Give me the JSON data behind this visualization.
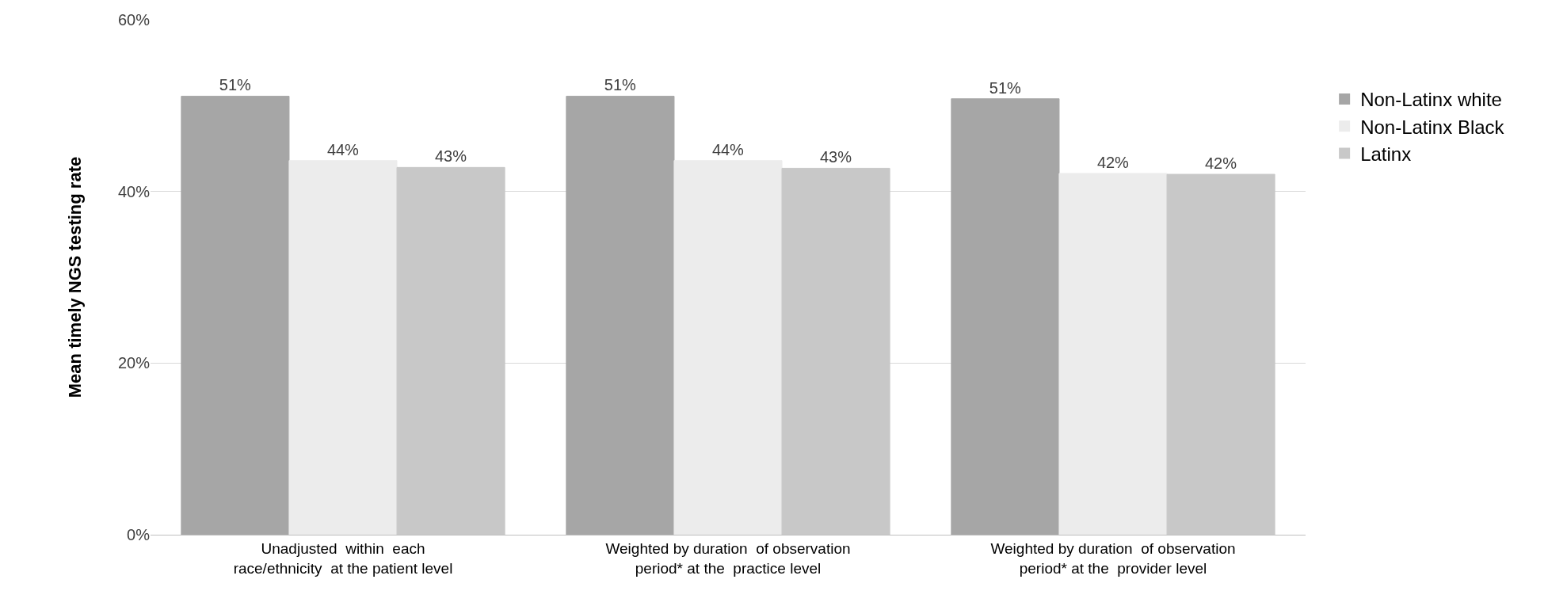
{
  "chart_data": {
    "type": "bar",
    "ylabel": "Mean timely NGS testing rate",
    "categories": [
      "Unadjusted  within  each\nrace/ethnicity  at the patient level",
      "Weighted by duration  of observation\nperiod* at the  practice level",
      "Weighted by duration  of observation\nperiod* at the  provider level"
    ],
    "series": [
      {
        "name": "Non-Latinx white",
        "color": "#a6a6a6",
        "values": [
          51.1,
          51.1,
          50.8
        ],
        "value_labels": [
          "51%",
          "51%",
          "51%"
        ]
      },
      {
        "name": "Non-Latinx Black",
        "color": "#ececec",
        "values": [
          43.6,
          43.6,
          42.1
        ],
        "value_labels": [
          "44%",
          "44%",
          "42%"
        ]
      },
      {
        "name": "Latinx",
        "color": "#c8c8c8",
        "values": [
          42.8,
          42.7,
          42.0
        ],
        "value_labels": [
          "43%",
          "43%",
          "42%"
        ]
      }
    ],
    "ylim": [
      0,
      60
    ],
    "yticks": [
      {
        "value": 0,
        "label": "0%"
      },
      {
        "value": 20,
        "label": "20%"
      },
      {
        "value": 40,
        "label": "40%"
      },
      {
        "value": 60,
        "label": "60%"
      }
    ],
    "grid": "y",
    "legend": "right"
  }
}
